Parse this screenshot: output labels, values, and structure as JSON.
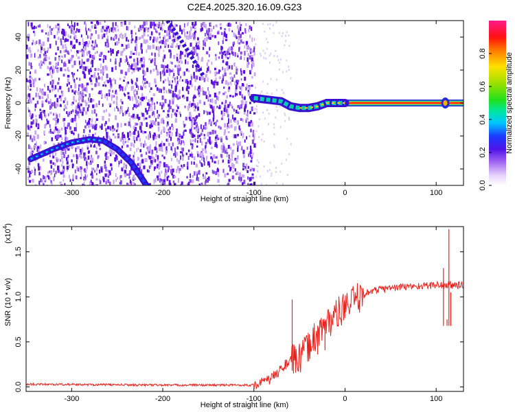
{
  "title": "C2E4.2025.320.16.09.G23",
  "colors": {
    "snr_line": "#e8211c",
    "noise_dark": "#5a10e0",
    "noise_light": "#c9a6f2",
    "axis": "#000000"
  },
  "chart_data": [
    {
      "type": "heatmap",
      "name": "spectrogram",
      "xlabel": "Height of straight line (km)",
      "ylabel": "Frequency (Hz)",
      "xlim": [
        -350,
        130
      ],
      "ylim": [
        -50,
        50
      ],
      "xticks": [
        -300,
        -200,
        -100,
        0,
        100
      ],
      "xtick_labels": [
        "-300",
        "-200",
        "-100",
        "0",
        "100"
      ],
      "yticks": [
        -40,
        -20,
        0,
        20,
        40
      ],
      "ytick_labels": [
        "-40",
        "-20",
        "0",
        "20",
        "40"
      ],
      "noise_region_km": [
        -350,
        -100
      ],
      "trace_main": [
        [
          -345,
          -34
        ],
        [
          -320,
          -28
        ],
        [
          -300,
          -24
        ],
        [
          -280,
          -22
        ],
        [
          -265,
          -23
        ],
        [
          -250,
          -28
        ],
        [
          -235,
          -36
        ],
        [
          -225,
          -44
        ],
        [
          -218,
          -50
        ]
      ],
      "trace_secondary": [
        [
          -195,
          50
        ],
        [
          -180,
          38
        ],
        [
          -165,
          25
        ],
        [
          -155,
          16
        ]
      ],
      "trace_converged": [
        [
          -100,
          3
        ],
        [
          -85,
          2
        ],
        [
          -70,
          1
        ],
        [
          -60,
          -2
        ],
        [
          -50,
          -3
        ],
        [
          -40,
          -3
        ],
        [
          -30,
          -2
        ],
        [
          -20,
          0
        ],
        [
          0,
          0
        ],
        [
          130,
          0
        ]
      ],
      "colorbar": {
        "label": "Normalized spectral amplitude",
        "range": [
          0,
          1
        ],
        "ticks": [
          0.0,
          0.2,
          0.4,
          0.6,
          0.8
        ],
        "tick_labels": [
          "0.0",
          "0.2",
          "0.4",
          "0.6",
          "0.8"
        ]
      }
    },
    {
      "type": "line",
      "name": "snr",
      "xlabel": "Height of straight line (km)",
      "ylabel": "SNR (10 * v/v)",
      "exponent_label": "(x10",
      "exponent_power": "4",
      "exponent_close": ")",
      "xlim": [
        -350,
        130
      ],
      "ylim": [
        -0.05,
        1.78
      ],
      "xticks": [
        -300,
        -200,
        -100,
        0,
        100
      ],
      "xtick_labels": [
        "-300",
        "-200",
        "-100",
        "0",
        "100"
      ],
      "yticks": [
        0.0,
        0.5,
        1.0,
        1.5
      ],
      "ytick_labels": [
        "0.0",
        "0.5",
        "1.0",
        "1.5"
      ],
      "series_points": [
        [
          -350,
          0.03
        ],
        [
          -200,
          0.02
        ],
        [
          -100,
          0.02
        ],
        [
          -90,
          0.05
        ],
        [
          -80,
          0.1
        ],
        [
          -70,
          0.2
        ],
        [
          -60,
          0.3
        ],
        [
          -50,
          0.3
        ],
        [
          -40,
          0.45
        ],
        [
          -30,
          0.6
        ],
        [
          -20,
          0.7
        ],
        [
          -10,
          0.8
        ],
        [
          0,
          0.88
        ],
        [
          10,
          0.95
        ],
        [
          20,
          1.02
        ],
        [
          30,
          1.07
        ],
        [
          50,
          1.1
        ],
        [
          80,
          1.12
        ],
        [
          100,
          1.13
        ],
        [
          130,
          1.13
        ]
      ],
      "spikes": [
        [
          -58,
          0.97
        ],
        [
          -30,
          0.68
        ],
        [
          -22,
          0.73
        ],
        [
          108,
          1.32
        ],
        [
          112,
          0.75
        ],
        [
          114,
          1.75
        ],
        [
          116,
          1.05
        ]
      ]
    }
  ]
}
